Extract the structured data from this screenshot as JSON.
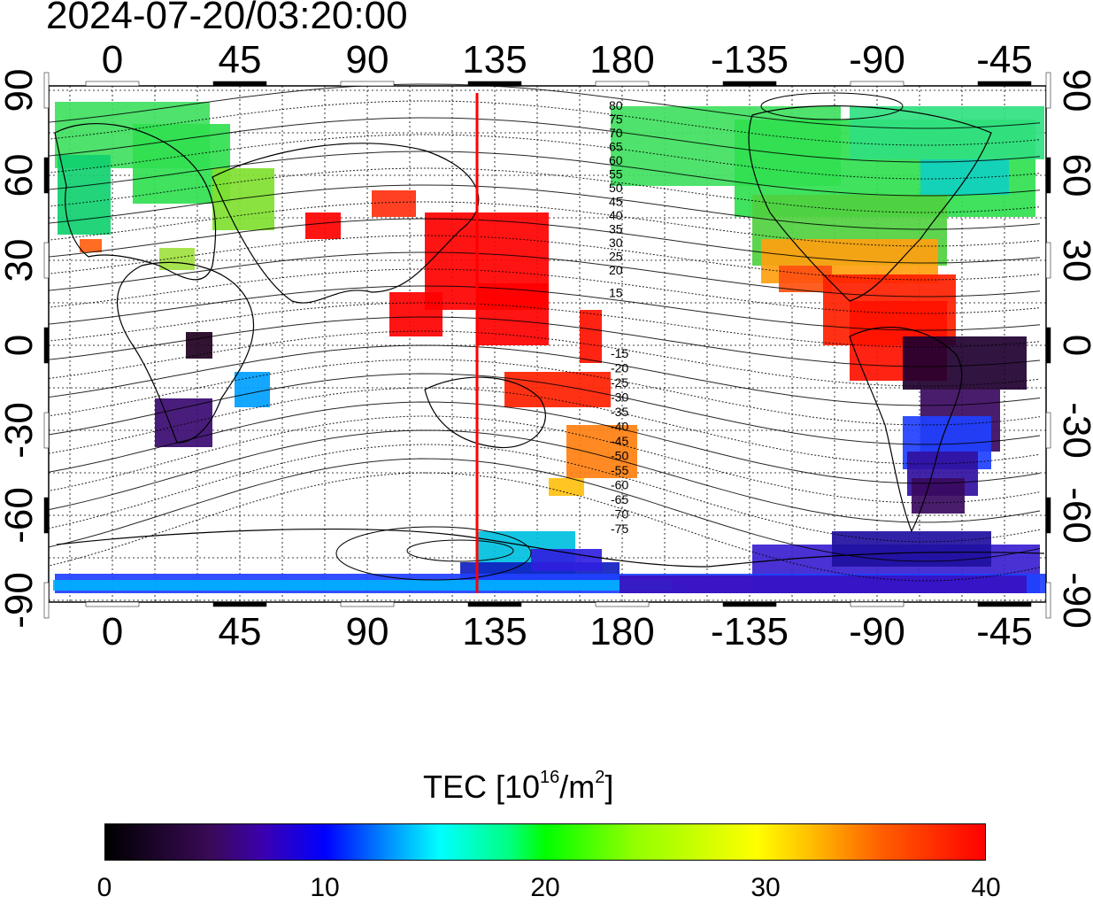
{
  "title": "2024-07-20/03:20:00",
  "map": {
    "top_lon_labels": [
      "0",
      "45",
      "90",
      "135",
      "180",
      "-135",
      "-90",
      "-45"
    ],
    "bottom_lon_labels": [
      "0",
      "45",
      "90",
      "135",
      "180",
      "-135",
      "-90",
      "-45"
    ],
    "left_lat_labels": [
      "90",
      "60",
      "30",
      "0",
      "-30",
      "-60",
      "-90"
    ],
    "right_lat_labels": [
      "90",
      "60",
      "30",
      "0",
      "-30",
      "-60",
      "-90"
    ],
    "contour_labels_north": [
      "80",
      "75",
      "70",
      "65",
      "60",
      "55",
      "50",
      "45",
      "40",
      "35",
      "30",
      "25",
      "20",
      "15"
    ],
    "contour_labels_south": [
      "-15",
      "-20",
      "-25",
      "-30",
      "-35",
      "-40",
      "-45",
      "-50",
      "-55",
      "-60",
      "-65",
      "-70",
      "-75"
    ],
    "terminator_longitude": 130,
    "terminator_color": "#ff0000"
  },
  "colorbar": {
    "title_prefix": "TEC  [10",
    "title_sup1": "16",
    "title_mid": "/m",
    "title_sup2": "2",
    "title_suffix": "]",
    "tick_labels": [
      "0",
      "10",
      "20",
      "30",
      "40"
    ],
    "min": 0,
    "max": 40,
    "colors": [
      "#000000",
      "#3b00b0",
      "#0000ff",
      "#00ffff",
      "#00ff00",
      "#ffff00",
      "#ff6000",
      "#ff0000"
    ]
  }
}
